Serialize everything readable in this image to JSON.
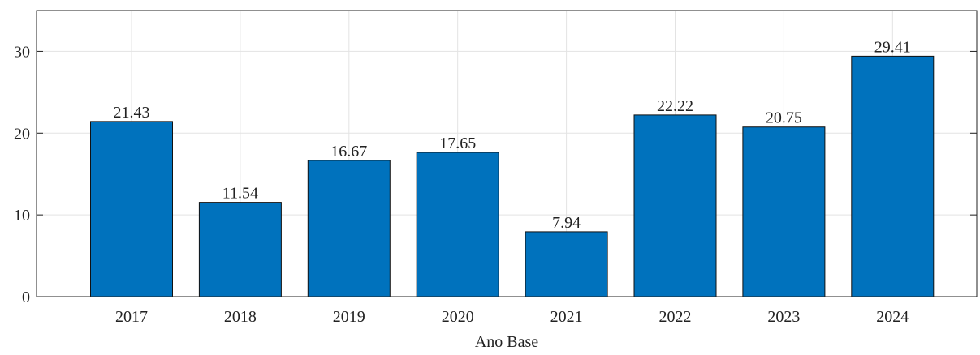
{
  "chart_data": {
    "type": "bar",
    "xlabel": "Ano Base",
    "categories": [
      "2017",
      "2018",
      "2019",
      "2020",
      "2021",
      "2022",
      "2023",
      "2024"
    ],
    "values": [
      21.43,
      11.54,
      16.67,
      17.65,
      7.94,
      22.22,
      20.75,
      29.41
    ],
    "color": "#0072bd",
    "ylim": [
      0,
      35
    ],
    "yticks": [
      0,
      10,
      20,
      30
    ],
    "grid": true
  }
}
